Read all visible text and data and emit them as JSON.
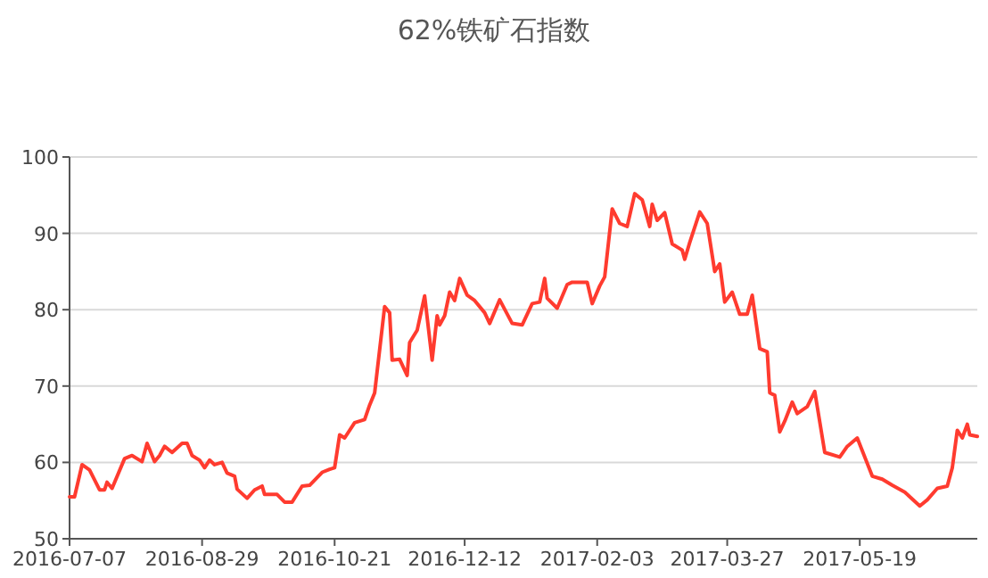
{
  "chart_data": {
    "type": "line",
    "title": "62%铁矿石指数",
    "x": [
      "2016-07-07",
      "2016-07-09",
      "2016-07-12",
      "2016-07-15",
      "2016-07-19",
      "2016-07-21",
      "2016-07-22",
      "2016-07-24",
      "2016-07-29",
      "2016-08-01",
      "2016-08-04",
      "2016-08-05",
      "2016-08-07",
      "2016-08-10",
      "2016-08-12",
      "2016-08-14",
      "2016-08-17",
      "2016-08-21",
      "2016-08-23",
      "2016-08-25",
      "2016-08-28",
      "2016-08-30",
      "2016-09-01",
      "2016-09-03",
      "2016-09-06",
      "2016-09-08",
      "2016-09-11",
      "2016-09-12",
      "2016-09-16",
      "2016-09-19",
      "2016-09-22",
      "2016-09-23",
      "2016-09-28",
      "2016-10-01",
      "2016-10-04",
      "2016-10-08",
      "2016-10-11",
      "2016-10-16",
      "2016-10-19",
      "2016-10-21",
      "2016-10-23",
      "2016-10-25",
      "2016-10-29",
      "2016-11-02",
      "2016-11-04",
      "2016-11-06",
      "2016-11-10",
      "2016-11-12",
      "2016-11-13",
      "2016-11-16",
      "2016-11-19",
      "2016-11-20",
      "2016-11-23",
      "2016-11-26",
      "2016-11-29",
      "2016-12-01",
      "2016-12-02",
      "2016-12-04",
      "2016-12-06",
      "2016-12-08",
      "2016-12-10",
      "2016-12-13",
      "2016-12-16",
      "2016-12-20",
      "2016-12-22",
      "2016-12-26",
      "2016-12-31",
      "2017-01-04",
      "2017-01-08",
      "2017-01-11",
      "2017-01-13",
      "2017-01-14",
      "2017-01-18",
      "2017-01-22",
      "2017-01-24",
      "2017-01-30",
      "2017-02-01",
      "2017-02-04",
      "2017-02-06",
      "2017-02-09",
      "2017-02-12",
      "2017-02-15",
      "2017-02-18",
      "2017-02-21",
      "2017-02-24",
      "2017-02-25",
      "2017-02-27",
      "2017-03-02",
      "2017-03-05",
      "2017-03-09",
      "2017-03-10",
      "2017-03-12",
      "2017-03-16",
      "2017-03-19",
      "2017-03-22",
      "2017-03-24",
      "2017-03-26",
      "2017-03-29",
      "2017-04-01",
      "2017-04-04",
      "2017-04-06",
      "2017-04-09",
      "2017-04-12",
      "2017-04-13",
      "2017-04-15",
      "2017-04-17",
      "2017-04-19",
      "2017-04-22",
      "2017-04-24",
      "2017-04-28",
      "2017-05-01",
      "2017-05-05",
      "2017-05-11",
      "2017-05-14",
      "2017-05-18",
      "2017-05-24",
      "2017-05-28",
      "2017-06-01",
      "2017-06-06",
      "2017-06-12",
      "2017-06-15",
      "2017-06-19",
      "2017-06-23",
      "2017-06-25",
      "2017-06-27",
      "2017-06-29",
      "2017-07-01",
      "2017-07-02",
      "2017-07-05"
    ],
    "series": [
      {
        "color": "#ff3b2f",
        "values": [
          55.5,
          55.5,
          59.7,
          59.0,
          56.4,
          56.4,
          57.4,
          56.6,
          60.5,
          60.9,
          60.3,
          60.1,
          62.5,
          60.1,
          60.9,
          62.1,
          61.3,
          62.5,
          62.5,
          60.9,
          60.3,
          59.3,
          60.3,
          59.7,
          60.0,
          58.6,
          58.2,
          56.5,
          55.3,
          56.4,
          56.9,
          55.8,
          55.8,
          54.8,
          54.8,
          56.9,
          57.0,
          58.7,
          59.1,
          59.3,
          63.6,
          63.2,
          65.2,
          65.6,
          67.5,
          69.1,
          80.4,
          79.6,
          73.4,
          73.5,
          71.4,
          75.7,
          77.3,
          81.8,
          73.4,
          79.2,
          78.0,
          79.2,
          82.3,
          81.2,
          84.1,
          81.9,
          81.2,
          79.6,
          78.2,
          81.3,
          78.2,
          78.0,
          80.8,
          81.0,
          84.1,
          81.5,
          80.2,
          83.3,
          83.6,
          83.6,
          80.8,
          83.1,
          84.3,
          93.2,
          91.3,
          90.9,
          95.2,
          94.4,
          90.9,
          93.8,
          91.7,
          92.7,
          88.6,
          87.8,
          86.6,
          88.8,
          92.8,
          91.3,
          85.0,
          86.0,
          81.0,
          82.3,
          79.4,
          79.4,
          81.9,
          74.9,
          74.5,
          69.1,
          68.8,
          64.0,
          65.4,
          67.9,
          66.4,
          67.3,
          69.3,
          61.3,
          60.7,
          62.1,
          63.2,
          58.2,
          57.8,
          57.0,
          56.1,
          54.3,
          55.1,
          56.6,
          56.9,
          59.3,
          64.2,
          63.2,
          65.0,
          63.6,
          63.4
        ]
      }
    ],
    "xlim": [
      "2016-07-07",
      "2017-07-05"
    ],
    "xticks": [
      "2016-07-07",
      "2016-08-29",
      "2016-10-21",
      "2016-12-12",
      "2017-02-03",
      "2017-03-27",
      "2017-05-19"
    ],
    "ylim": [
      50,
      100
    ],
    "yticks": [
      50,
      60,
      70,
      80,
      90,
      100
    ],
    "grid": "y"
  }
}
